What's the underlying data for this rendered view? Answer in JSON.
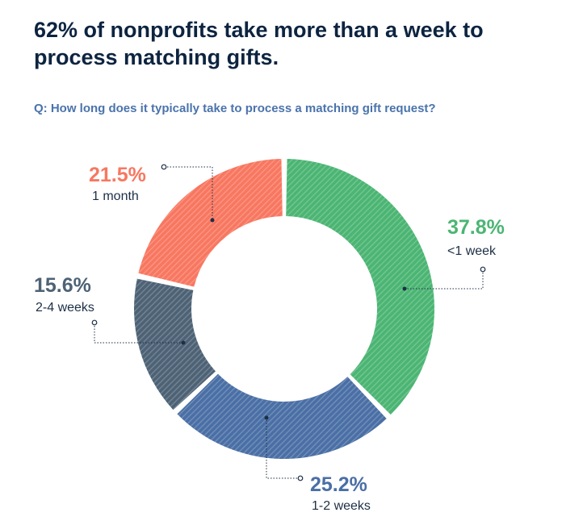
{
  "title": "62% of nonprofits take more than a week to process matching gifts.",
  "subtitle": "Q: How long does it typically take to process a matching gift request?",
  "colors": {
    "title": "#0d2440",
    "subtitle": "#4a73ac",
    "under_1_week": "#4bb573",
    "one_to_two_weeks": "#4a6fa5",
    "two_to_four_weeks": "#4d6275",
    "one_month": "#f87760"
  },
  "chart_data": {
    "type": "pie",
    "donut": true,
    "categories": [
      "<1 week",
      "1-2 weeks",
      "2-4 weeks",
      "1 month"
    ],
    "values": [
      37.8,
      25.2,
      15.6,
      21.5
    ],
    "value_labels": [
      "37.8%",
      "25.2%",
      "15.6%",
      "21.5%"
    ],
    "colors": [
      "#4bb573",
      "#4a6fa5",
      "#4d6275",
      "#f87760"
    ],
    "title": "62% of nonprofits take more than a week to process matching gifts.",
    "legend": "none",
    "hatched": true
  }
}
